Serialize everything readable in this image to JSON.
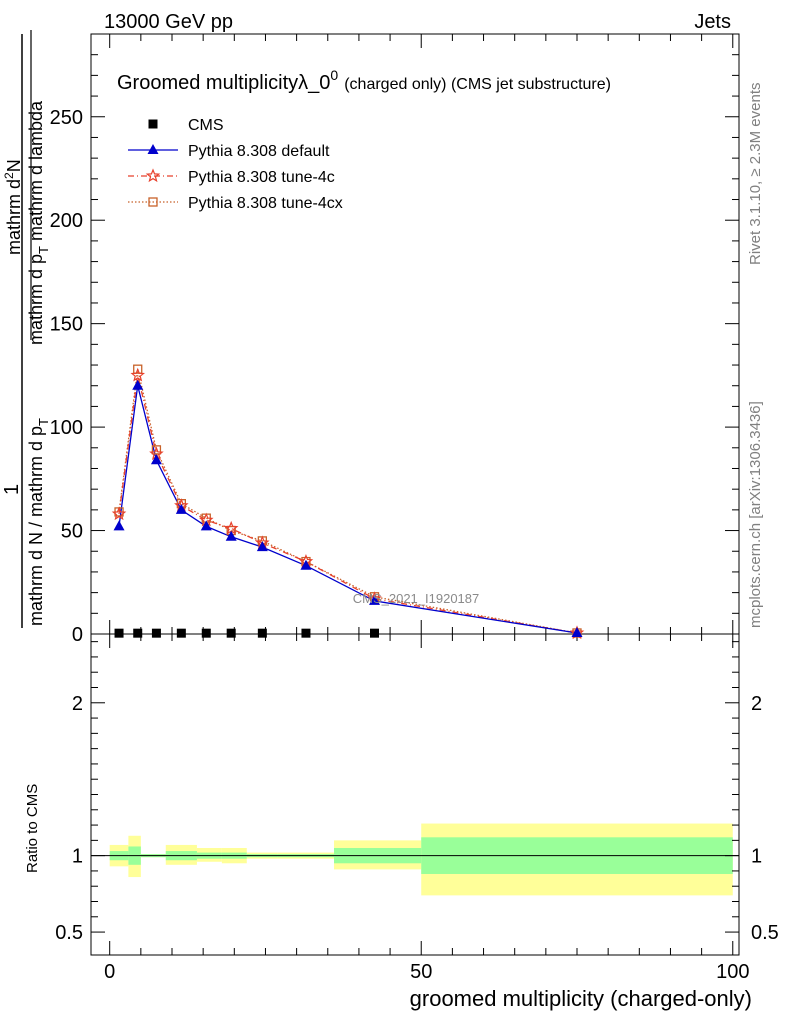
{
  "header": {
    "left": "13000 GeV pp",
    "right": "Jets"
  },
  "title": {
    "main": "Groomed multiplicity",
    "lambda": "λ_0",
    "sup": "0",
    "suffix": "(charged only) (CMS jet substructure)"
  },
  "side_text": {
    "rivet": "Rivet 3.1.10, ≥ 2.3M events",
    "mcplots": "mcplots.cern.ch [arXiv:1306.3436]"
  },
  "watermark": "CMS_2021_I1920187",
  "ylabel_parts": {
    "one": "1",
    "den": "mathrm d N / mathrm d p",
    "den_sub": "T",
    "num": "mathrm d",
    "num_sup": "2",
    "num_n": "N",
    "num2": "mathrm d p",
    "num2_sub": "T",
    "num3": " mathrm d lambda"
  },
  "ratio_ylabel": "Ratio to CMS",
  "xlabel": "groomed multiplicity (charged-only)",
  "colors": {
    "cms": "#000000",
    "default": "#0000cc",
    "tune4c": "#e8412c",
    "tune4cx": "#c8622a",
    "band_inner": "#99ff99",
    "band_outer": "#ffff99"
  },
  "chart_data": [
    {
      "type": "line",
      "panel": "main",
      "xlim": [
        -3,
        101
      ],
      "ylim": [
        0,
        290
      ],
      "xticks": [
        0,
        50,
        100
      ],
      "yticks": [
        0,
        50,
        100,
        150,
        200,
        250
      ],
      "legend_position": "top-left",
      "series": [
        {
          "name": "CMS",
          "style": "square",
          "x": [
            1.5,
            4.5,
            7.5,
            11.5,
            15.5,
            19.5,
            24.5,
            31.5,
            42.5
          ],
          "y": [
            0.4,
            0.4,
            0.4,
            0.4,
            0.4,
            0.4,
            0.4,
            0.4,
            0.4
          ]
        },
        {
          "name": "Pythia 8.308 default",
          "style": "triangle",
          "x": [
            1.5,
            4.5,
            7.5,
            11.5,
            15.5,
            19.5,
            24.5,
            31.5,
            42.5,
            75
          ],
          "y": [
            52,
            120,
            84,
            60,
            52,
            47,
            42,
            33,
            16,
            0.5
          ]
        },
        {
          "name": "Pythia 8.308 tune-4c",
          "style": "star",
          "x": [
            1.5,
            4.5,
            7.5,
            11.5,
            15.5,
            19.5,
            24.5,
            31.5,
            42.5,
            75
          ],
          "y": [
            58,
            125,
            87,
            62,
            55,
            51,
            44,
            35,
            17,
            0.5
          ]
        },
        {
          "name": "Pythia 8.308 tune-4cx",
          "style": "open-square",
          "x": [
            1.5,
            4.5,
            7.5,
            11.5,
            15.5,
            19.5,
            24.5,
            31.5,
            42.5,
            75
          ],
          "y": [
            59,
            128,
            89,
            63,
            56,
            50,
            45,
            35,
            18,
            0.5
          ]
        }
      ]
    },
    {
      "type": "area",
      "panel": "ratio",
      "xlim": [
        -3,
        101
      ],
      "ylim": [
        0.35,
        2.45
      ],
      "yticks": [
        0.5,
        1,
        2
      ],
      "reference_line": 1,
      "bands": {
        "edges": [
          0,
          3,
          5,
          9,
          14,
          18,
          22,
          27,
          36,
          50,
          100
        ],
        "inner_low": [
          0.97,
          0.94,
          0.99,
          0.97,
          0.98,
          0.98,
          0.99,
          0.99,
          0.95,
          0.88
        ],
        "inner_high": [
          1.03,
          1.06,
          1.01,
          1.03,
          1.02,
          1.02,
          1.01,
          1.01,
          1.05,
          1.12
        ],
        "outer_low": [
          0.93,
          0.86,
          0.99,
          0.94,
          0.96,
          0.95,
          0.98,
          0.98,
          0.91,
          0.74
        ],
        "outer_high": [
          1.07,
          1.13,
          1.01,
          1.07,
          1.05,
          1.05,
          1.02,
          1.02,
          1.1,
          1.21
        ]
      }
    }
  ]
}
